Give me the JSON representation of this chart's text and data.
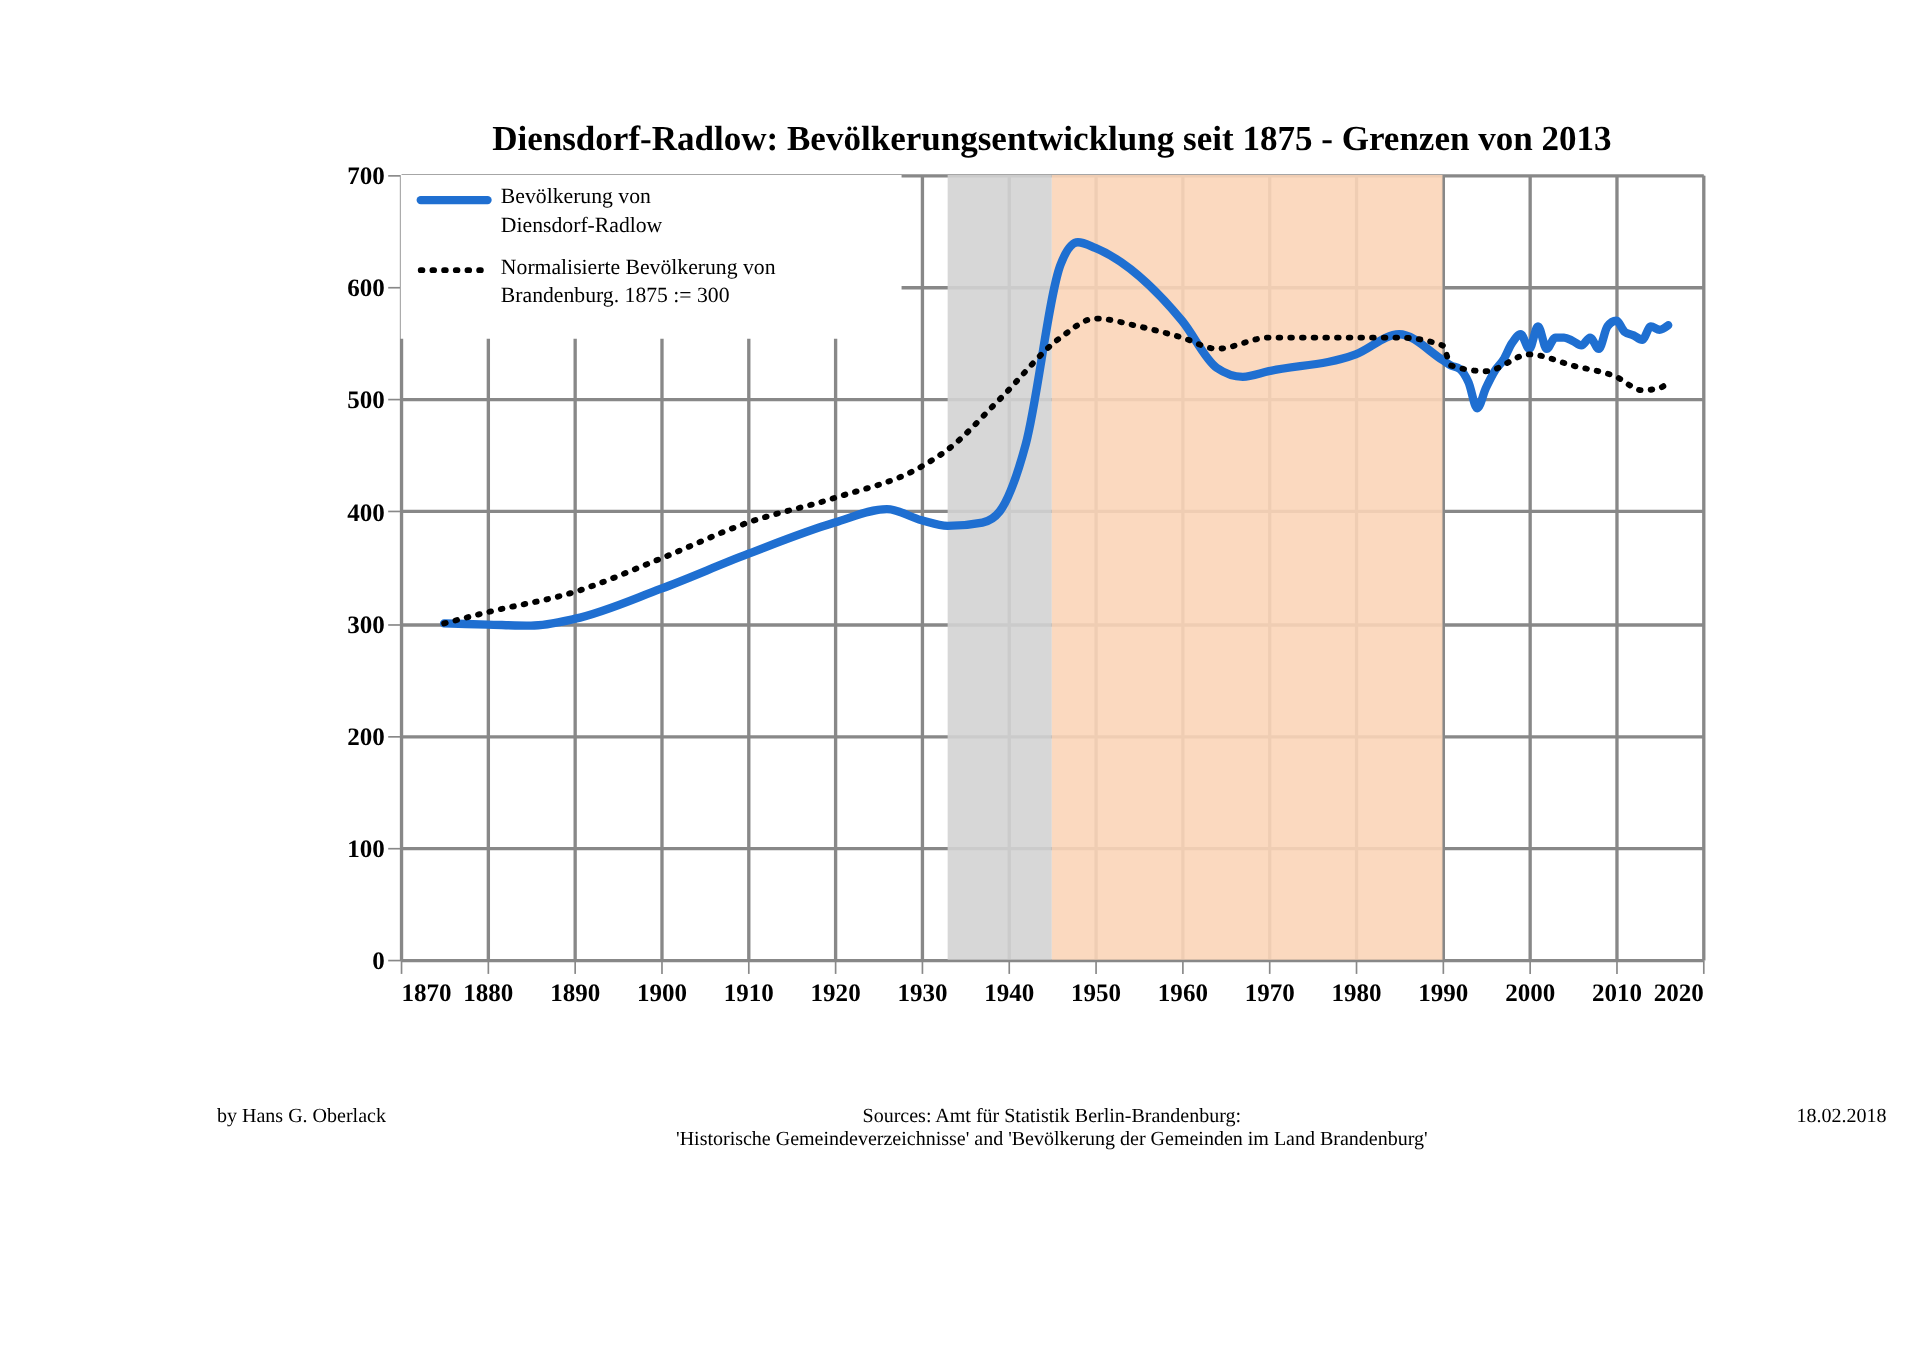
{
  "chart_data": {
    "type": "line",
    "title": "Diensdorf-Radlow: Bevölkerungsentwicklung seit 1875 - Grenzen von 2013",
    "series": [
      {
        "name": "Bevölkerung von Diensdorf-Radlow",
        "color": "#1f6fd1",
        "line_style": "solid",
        "x": [
          1875,
          1880,
          1885,
          1890,
          1900,
          1910,
          1920,
          1926,
          1930,
          1933,
          1937,
          1939,
          1942,
          1946,
          1948,
          1950,
          1960,
          1964,
          1967,
          1970,
          1980,
          1985,
          1990,
          1991,
          1992,
          1993,
          1994,
          1995,
          1996,
          1997,
          1998,
          1999,
          2000,
          2001,
          2002,
          2003,
          2004,
          2005,
          2006,
          2007,
          2008,
          2009,
          2010,
          2011,
          2012,
          2013,
          2014,
          2015,
          2016
        ],
        "values": [
          300,
          299,
          298,
          304,
          331,
          362,
          390,
          402,
          392,
          387,
          390,
          400,
          460,
          620,
          640,
          635,
          570,
          528,
          520,
          525,
          540,
          558,
          535,
          530,
          527,
          515,
          492,
          510,
          525,
          535,
          550,
          558,
          545,
          565,
          545,
          555,
          555,
          552,
          548,
          555,
          545,
          565,
          570,
          560,
          557,
          553,
          565,
          562,
          566
        ]
      },
      {
        "name": "Normalisierte Bevölkerung von Brandenburg. 1875 := 300",
        "color": "#000000",
        "line_style": "dotted",
        "x": [
          1875,
          1880,
          1890,
          1900,
          1910,
          1920,
          1930,
          1933,
          1939,
          1946,
          1950,
          1955,
          1960,
          1964,
          1970,
          1980,
          1985,
          1990,
          1991,
          1995,
          2000,
          2005,
          2010,
          2013,
          2015,
          2016
        ],
        "values": [
          300,
          310,
          328,
          358,
          390,
          412,
          440,
          455,
          500,
          555,
          572,
          565,
          555,
          545,
          555,
          555,
          555,
          548,
          530,
          525,
          540,
          530,
          520,
          508,
          510,
          515
        ]
      }
    ],
    "xlim": [
      1870,
      2020
    ],
    "xticks": [
      1870,
      1880,
      1890,
      1900,
      1910,
      1920,
      1930,
      1940,
      1950,
      1960,
      1970,
      1980,
      1990,
      2000,
      2010,
      2020
    ],
    "ylim": [
      0,
      700
    ],
    "yticks": [
      0,
      100,
      200,
      300,
      400,
      500,
      600,
      700
    ],
    "bands": [
      {
        "axis": "x",
        "from": 1933,
        "to": 1945,
        "color": "#d3d3d3"
      },
      {
        "axis": "x",
        "from": 1945,
        "to": 1990,
        "color": "#fbd5b8"
      }
    ],
    "grid": true,
    "legend": "top left",
    "annotations": [
      "by Hans G. Oberlack",
      "Sources: Amt für Statistik Berlin-Brandenburg:\n'Historische Gemeindeverzeichnisse' and 'Bevölkerung der Gemeinden im Land Brandenburg'",
      "18.02.2018"
    ]
  }
}
